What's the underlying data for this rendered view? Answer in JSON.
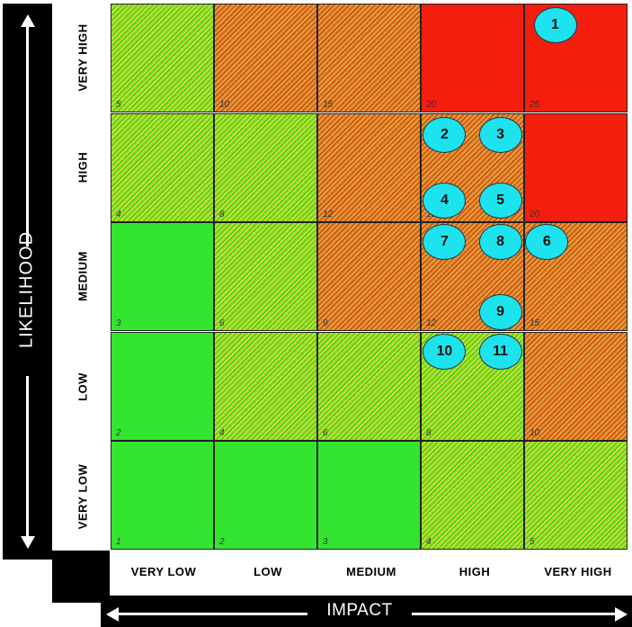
{
  "axes": {
    "likelihood_title": "LIKELIHOOD",
    "impact_title": "IMPACT",
    "likelihood_levels": [
      "VERY LOW",
      "LOW",
      "MEDIUM",
      "HIGH",
      "VERY HIGH"
    ],
    "impact_levels": [
      "VERY LOW",
      "LOW",
      "MEDIUM",
      "HIGH",
      "VERY HIGH"
    ]
  },
  "colors": {
    "green": "#33e52e",
    "green_hatched": "#a0dc2d",
    "orange_hatched": "#d97d28",
    "red": "#f41e0e",
    "risk_marker": "#1de3ee"
  },
  "matrix": [
    {
      "likelihood": "VERY HIGH",
      "cells": [
        {
          "score": "5",
          "zone": "gh"
        },
        {
          "score": "10",
          "zone": "oh"
        },
        {
          "score": "15",
          "zone": "oh"
        },
        {
          "score": "20",
          "zone": "red"
        },
        {
          "score": "25",
          "zone": "red"
        }
      ]
    },
    {
      "likelihood": "HIGH",
      "cells": [
        {
          "score": "4",
          "zone": "gh"
        },
        {
          "score": "8",
          "zone": "gh"
        },
        {
          "score": "12",
          "zone": "oh"
        },
        {
          "score": "16",
          "zone": "oh"
        },
        {
          "score": "20",
          "zone": "red"
        }
      ]
    },
    {
      "likelihood": "MEDIUM",
      "cells": [
        {
          "score": "3",
          "zone": "green"
        },
        {
          "score": "6",
          "zone": "gh"
        },
        {
          "score": "9",
          "zone": "oh"
        },
        {
          "score": "12",
          "zone": "oh"
        },
        {
          "score": "15",
          "zone": "oh"
        }
      ]
    },
    {
      "likelihood": "LOW",
      "cells": [
        {
          "score": "2",
          "zone": "green"
        },
        {
          "score": "4",
          "zone": "gh"
        },
        {
          "score": "6",
          "zone": "gh"
        },
        {
          "score": "8",
          "zone": "gh"
        },
        {
          "score": "10",
          "zone": "oh"
        }
      ]
    },
    {
      "likelihood": "VERY LOW",
      "cells": [
        {
          "score": "1",
          "zone": "green"
        },
        {
          "score": "2",
          "zone": "green"
        },
        {
          "score": "3",
          "zone": "green"
        },
        {
          "score": "4",
          "zone": "gh"
        },
        {
          "score": "5",
          "zone": "gh"
        }
      ]
    }
  ],
  "risks": [
    {
      "id": "1",
      "likelihood": "VERY HIGH",
      "impact": "VERY HIGH"
    },
    {
      "id": "2",
      "likelihood": "HIGH",
      "impact": "HIGH"
    },
    {
      "id": "3",
      "likelihood": "HIGH",
      "impact": "HIGH"
    },
    {
      "id": "4",
      "likelihood": "HIGH",
      "impact": "HIGH"
    },
    {
      "id": "5",
      "likelihood": "HIGH",
      "impact": "HIGH"
    },
    {
      "id": "6",
      "likelihood": "MEDIUM",
      "impact": "VERY HIGH"
    },
    {
      "id": "7",
      "likelihood": "MEDIUM",
      "impact": "HIGH"
    },
    {
      "id": "8",
      "likelihood": "MEDIUM",
      "impact": "HIGH"
    },
    {
      "id": "9",
      "likelihood": "MEDIUM",
      "impact": "HIGH"
    },
    {
      "id": "10",
      "likelihood": "LOW",
      "impact": "HIGH"
    },
    {
      "id": "11",
      "likelihood": "LOW",
      "impact": "HIGH"
    }
  ]
}
